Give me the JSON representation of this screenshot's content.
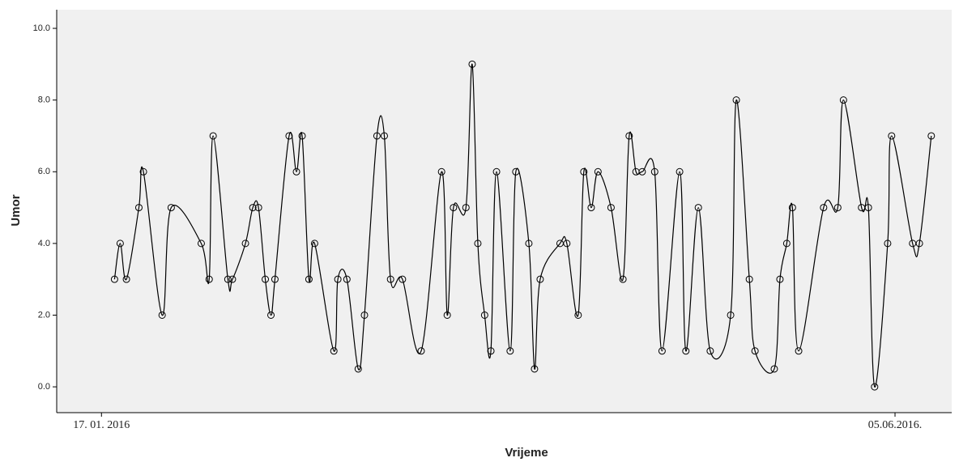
{
  "chart_data": {
    "type": "line",
    "x_label": "Vrijeme",
    "y_label": "Umor",
    "x": [
      2.3,
      3.3,
      4.4,
      6.6,
      7.4,
      10.7,
      12.3,
      17.6,
      19,
      19.7,
      22.3,
      23.1,
      25.4,
      26.7,
      27.7,
      28.9,
      29.9,
      30.6,
      33.1,
      34.4,
      35.4,
      36.6,
      37.6,
      41,
      41.7,
      43.3,
      45.3,
      46.4,
      48.6,
      49.9,
      51,
      53.1,
      56.4,
      60,
      61,
      62.1,
      64.3,
      65.4,
      66.4,
      67.6,
      68.7,
      69.7,
      72.1,
      73.1,
      75.4,
      76.4,
      77.4,
      80.9,
      82.1,
      84.1,
      85.1,
      86.4,
      87.6,
      89.9,
      92,
      93.1,
      94.3,
      95.4,
      97.6,
      98.9,
      102,
      103.1,
      105.3,
      107.4,
      111,
      112,
      114.3,
      115.3,
      118.7,
      119.7,
      120.9,
      121.9,
      123,
      127.4,
      129.9,
      130.9,
      134.1,
      135.3,
      136.4,
      138.7,
      139.4,
      143.1,
      144.3,
      146.4
    ],
    "series": [
      {
        "color": "#000000",
        "values": [
          3,
          4,
          3,
          5,
          6,
          2,
          5,
          4,
          3,
          7,
          3,
          3,
          4,
          5,
          5,
          3,
          2,
          3,
          7,
          6,
          7,
          3,
          4,
          1,
          3,
          3,
          0.5,
          2,
          7,
          7,
          3,
          3,
          1,
          6,
          2,
          5,
          5,
          9,
          4,
          2,
          1,
          6,
          1,
          6,
          4,
          0.5,
          3,
          4,
          4,
          2,
          6,
          5,
          6,
          5,
          3,
          7,
          6,
          6,
          6,
          1,
          6,
          1,
          5,
          1,
          2,
          8,
          3,
          1,
          0.5,
          3,
          4,
          5,
          1,
          5,
          5,
          8,
          5,
          5,
          0,
          4,
          7,
          4,
          4,
          7
        ]
      }
    ],
    "xlim": [
      -7.9,
      150
    ],
    "xticks": [
      {
        "value": 0,
        "label": "17. 01. 2016"
      },
      {
        "value": 140,
        "label": "05.06.2016."
      }
    ],
    "ylim": [
      -0.72,
      10.52
    ],
    "yticks": [
      {
        "value": 0,
        "label": "0.0"
      },
      {
        "value": 2,
        "label": "2.0"
      },
      {
        "value": 4,
        "label": "4.0"
      },
      {
        "value": 6,
        "label": "6.0"
      },
      {
        "value": 8,
        "label": "8.0"
      },
      {
        "value": 10,
        "label": "10.0"
      }
    ],
    "smooth": true,
    "markers": "circle",
    "background": "#f0f0f0"
  }
}
